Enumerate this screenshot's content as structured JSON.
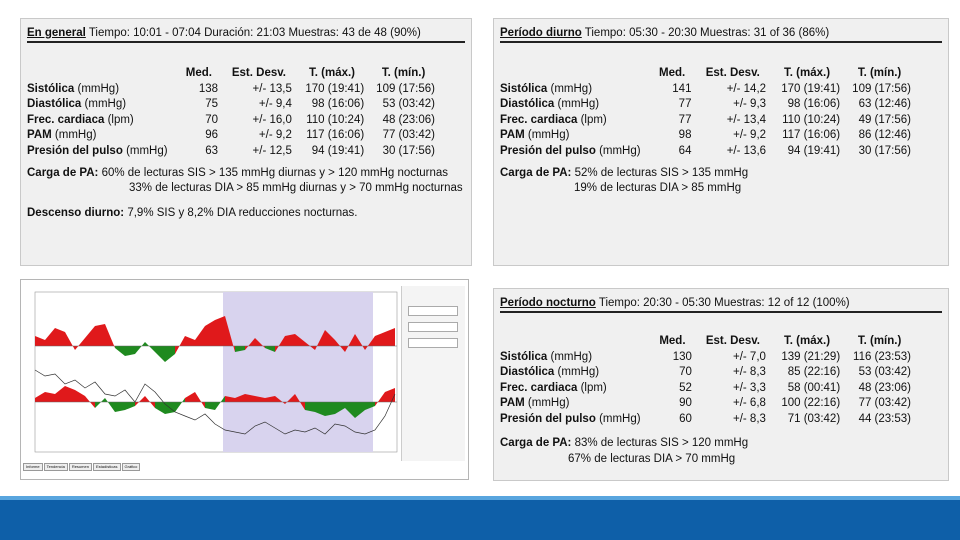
{
  "general": {
    "title": "En general",
    "subtitle": "Tiempo: 10:01 - 07:04 Duración: 21:03 Muestras: 43 de 48 (90%)",
    "headers": [
      "Med.",
      "Est. Desv.",
      "T. (máx.)",
      "T. (mín.)"
    ],
    "rows": [
      {
        "label": "Sistólica",
        "unit": "(mmHg)",
        "med": "138",
        "sd": "+/- 13,5",
        "tmax": "170 (19:41)",
        "tmin": "109 (17:56)"
      },
      {
        "label": "Diastólica",
        "unit": "(mmHg)",
        "med": "75",
        "sd": "+/- 9,4",
        "tmax": "98 (16:06)",
        "tmin": "53 (03:42)"
      },
      {
        "label": "Frec. cardiaca",
        "unit": "(lpm)",
        "med": "70",
        "sd": "+/- 16,0",
        "tmax": "110 (10:24)",
        "tmin": "48 (23:06)"
      },
      {
        "label": "PAM",
        "unit": "(mmHg)",
        "med": "96",
        "sd": "+/- 9,2",
        "tmax": "117 (16:06)",
        "tmin": "77 (03:42)"
      },
      {
        "label": "Presión del pulso",
        "unit": "(mmHg)",
        "med": "63",
        "sd": "+/- 12,5",
        "tmax": "94 (19:41)",
        "tmin": "30 (17:56)"
      }
    ],
    "load_label": "Carga de PA:",
    "load_line1": "60% de lecturas SIS > 135 mmHg diurnas y > 120 mmHg nocturnas",
    "load_line2": "33% de lecturas DIA > 85 mmHg diurnas y > 70 mmHg nocturnas",
    "dip_label": "Descenso diurno:",
    "dip_text": "7,9% SIS y 8,2% DIA reducciones nocturnas."
  },
  "day": {
    "title": "Período diurno",
    "subtitle": "Tiempo: 05:30 - 20:30 Muestras: 31 of 36 (86%)",
    "headers": [
      "Med.",
      "Est. Desv.",
      "T. (máx.)",
      "T. (mín.)"
    ],
    "rows": [
      {
        "label": "Sistólica",
        "unit": "(mmHg)",
        "med": "141",
        "sd": "+/- 14,2",
        "tmax": "170 (19:41)",
        "tmin": "109 (17:56)"
      },
      {
        "label": "Diastólica",
        "unit": "(mmHg)",
        "med": "77",
        "sd": "+/- 9,3",
        "tmax": "98 (16:06)",
        "tmin": "63 (12:46)"
      },
      {
        "label": "Frec. cardiaca",
        "unit": "(lpm)",
        "med": "77",
        "sd": "+/- 13,4",
        "tmax": "110 (10:24)",
        "tmin": "49 (17:56)"
      },
      {
        "label": "PAM",
        "unit": "(mmHg)",
        "med": "98",
        "sd": "+/- 9,2",
        "tmax": "117 (16:06)",
        "tmin": "86 (12:46)"
      },
      {
        "label": "Presión del pulso",
        "unit": "(mmHg)",
        "med": "64",
        "sd": "+/- 13,6",
        "tmax": "94 (19:41)",
        "tmin": "30 (17:56)"
      }
    ],
    "load_label": "Carga de PA:",
    "load_line1": "52% de lecturas SIS > 135 mmHg",
    "load_line2": "19% de lecturas DIA > 85 mmHg"
  },
  "night": {
    "title": "Período nocturno",
    "subtitle": "Tiempo: 20:30 - 05:30 Muestras: 12 of 12 (100%)",
    "headers": [
      "Med.",
      "Est. Desv.",
      "T. (máx.)",
      "T. (mín.)"
    ],
    "rows": [
      {
        "label": "Sistólica",
        "unit": "(mmHg)",
        "med": "130",
        "sd": "+/- 7,0",
        "tmax": "139 (21:29)",
        "tmin": "116 (23:53)"
      },
      {
        "label": "Diastólica",
        "unit": "(mmHg)",
        "med": "70",
        "sd": "+/- 8,3",
        "tmax": "85 (22:16)",
        "tmin": "53 (03:42)"
      },
      {
        "label": "Frec. cardiaca",
        "unit": "(lpm)",
        "med": "52",
        "sd": "+/- 3,3",
        "tmax": "58 (00:41)",
        "tmin": "48 (23:06)"
      },
      {
        "label": "PAM",
        "unit": "(mmHg)",
        "med": "90",
        "sd": "+/- 6,8",
        "tmax": "100 (22:16)",
        "tmin": "77 (03:42)"
      },
      {
        "label": "Presión del pulso",
        "unit": "(mmHg)",
        "med": "60",
        "sd": "+/- 8,3",
        "tmax": "71 (03:42)",
        "tmin": "44 (23:53)"
      }
    ],
    "load_label": "Carga de PA:",
    "load_line1": "83% de lecturas SIS > 120 mmHg",
    "load_line2": "67% de lecturas DIA > 70 mmHg"
  },
  "chart": {
    "colors": {
      "above": "#e0191b",
      "below": "#1f8a1f",
      "night_band": "#d8d3ee",
      "line": "#333333"
    },
    "tabs": [
      "Informe",
      "Tendencia",
      "Resumen",
      "Estadísticas",
      "Gráfico"
    ]
  }
}
